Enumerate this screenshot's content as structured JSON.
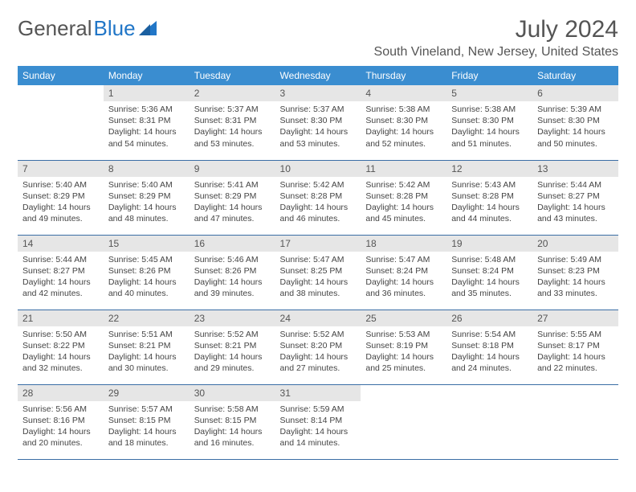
{
  "logo": {
    "word1": "General",
    "word2": "Blue"
  },
  "header": {
    "title": "July 2024",
    "location": "South Vineland, New Jersey, United States"
  },
  "colors": {
    "header_bg": "#3a8dd0",
    "header_text": "#ffffff",
    "daynum_bg": "#e6e6e6",
    "border": "#3a6ea5",
    "logo_blue": "#2176c7"
  },
  "weekdays": [
    "Sunday",
    "Monday",
    "Tuesday",
    "Wednesday",
    "Thursday",
    "Friday",
    "Saturday"
  ],
  "grid": [
    [
      null,
      {
        "n": "1",
        "l1": "Sunrise: 5:36 AM",
        "l2": "Sunset: 8:31 PM",
        "l3": "Daylight: 14 hours",
        "l4": "and 54 minutes."
      },
      {
        "n": "2",
        "l1": "Sunrise: 5:37 AM",
        "l2": "Sunset: 8:31 PM",
        "l3": "Daylight: 14 hours",
        "l4": "and 53 minutes."
      },
      {
        "n": "3",
        "l1": "Sunrise: 5:37 AM",
        "l2": "Sunset: 8:30 PM",
        "l3": "Daylight: 14 hours",
        "l4": "and 53 minutes."
      },
      {
        "n": "4",
        "l1": "Sunrise: 5:38 AM",
        "l2": "Sunset: 8:30 PM",
        "l3": "Daylight: 14 hours",
        "l4": "and 52 minutes."
      },
      {
        "n": "5",
        "l1": "Sunrise: 5:38 AM",
        "l2": "Sunset: 8:30 PM",
        "l3": "Daylight: 14 hours",
        "l4": "and 51 minutes."
      },
      {
        "n": "6",
        "l1": "Sunrise: 5:39 AM",
        "l2": "Sunset: 8:30 PM",
        "l3": "Daylight: 14 hours",
        "l4": "and 50 minutes."
      }
    ],
    [
      {
        "n": "7",
        "l1": "Sunrise: 5:40 AM",
        "l2": "Sunset: 8:29 PM",
        "l3": "Daylight: 14 hours",
        "l4": "and 49 minutes."
      },
      {
        "n": "8",
        "l1": "Sunrise: 5:40 AM",
        "l2": "Sunset: 8:29 PM",
        "l3": "Daylight: 14 hours",
        "l4": "and 48 minutes."
      },
      {
        "n": "9",
        "l1": "Sunrise: 5:41 AM",
        "l2": "Sunset: 8:29 PM",
        "l3": "Daylight: 14 hours",
        "l4": "and 47 minutes."
      },
      {
        "n": "10",
        "l1": "Sunrise: 5:42 AM",
        "l2": "Sunset: 8:28 PM",
        "l3": "Daylight: 14 hours",
        "l4": "and 46 minutes."
      },
      {
        "n": "11",
        "l1": "Sunrise: 5:42 AM",
        "l2": "Sunset: 8:28 PM",
        "l3": "Daylight: 14 hours",
        "l4": "and 45 minutes."
      },
      {
        "n": "12",
        "l1": "Sunrise: 5:43 AM",
        "l2": "Sunset: 8:28 PM",
        "l3": "Daylight: 14 hours",
        "l4": "and 44 minutes."
      },
      {
        "n": "13",
        "l1": "Sunrise: 5:44 AM",
        "l2": "Sunset: 8:27 PM",
        "l3": "Daylight: 14 hours",
        "l4": "and 43 minutes."
      }
    ],
    [
      {
        "n": "14",
        "l1": "Sunrise: 5:44 AM",
        "l2": "Sunset: 8:27 PM",
        "l3": "Daylight: 14 hours",
        "l4": "and 42 minutes."
      },
      {
        "n": "15",
        "l1": "Sunrise: 5:45 AM",
        "l2": "Sunset: 8:26 PM",
        "l3": "Daylight: 14 hours",
        "l4": "and 40 minutes."
      },
      {
        "n": "16",
        "l1": "Sunrise: 5:46 AM",
        "l2": "Sunset: 8:26 PM",
        "l3": "Daylight: 14 hours",
        "l4": "and 39 minutes."
      },
      {
        "n": "17",
        "l1": "Sunrise: 5:47 AM",
        "l2": "Sunset: 8:25 PM",
        "l3": "Daylight: 14 hours",
        "l4": "and 38 minutes."
      },
      {
        "n": "18",
        "l1": "Sunrise: 5:47 AM",
        "l2": "Sunset: 8:24 PM",
        "l3": "Daylight: 14 hours",
        "l4": "and 36 minutes."
      },
      {
        "n": "19",
        "l1": "Sunrise: 5:48 AM",
        "l2": "Sunset: 8:24 PM",
        "l3": "Daylight: 14 hours",
        "l4": "and 35 minutes."
      },
      {
        "n": "20",
        "l1": "Sunrise: 5:49 AM",
        "l2": "Sunset: 8:23 PM",
        "l3": "Daylight: 14 hours",
        "l4": "and 33 minutes."
      }
    ],
    [
      {
        "n": "21",
        "l1": "Sunrise: 5:50 AM",
        "l2": "Sunset: 8:22 PM",
        "l3": "Daylight: 14 hours",
        "l4": "and 32 minutes."
      },
      {
        "n": "22",
        "l1": "Sunrise: 5:51 AM",
        "l2": "Sunset: 8:21 PM",
        "l3": "Daylight: 14 hours",
        "l4": "and 30 minutes."
      },
      {
        "n": "23",
        "l1": "Sunrise: 5:52 AM",
        "l2": "Sunset: 8:21 PM",
        "l3": "Daylight: 14 hours",
        "l4": "and 29 minutes."
      },
      {
        "n": "24",
        "l1": "Sunrise: 5:52 AM",
        "l2": "Sunset: 8:20 PM",
        "l3": "Daylight: 14 hours",
        "l4": "and 27 minutes."
      },
      {
        "n": "25",
        "l1": "Sunrise: 5:53 AM",
        "l2": "Sunset: 8:19 PM",
        "l3": "Daylight: 14 hours",
        "l4": "and 25 minutes."
      },
      {
        "n": "26",
        "l1": "Sunrise: 5:54 AM",
        "l2": "Sunset: 8:18 PM",
        "l3": "Daylight: 14 hours",
        "l4": "and 24 minutes."
      },
      {
        "n": "27",
        "l1": "Sunrise: 5:55 AM",
        "l2": "Sunset: 8:17 PM",
        "l3": "Daylight: 14 hours",
        "l4": "and 22 minutes."
      }
    ],
    [
      {
        "n": "28",
        "l1": "Sunrise: 5:56 AM",
        "l2": "Sunset: 8:16 PM",
        "l3": "Daylight: 14 hours",
        "l4": "and 20 minutes."
      },
      {
        "n": "29",
        "l1": "Sunrise: 5:57 AM",
        "l2": "Sunset: 8:15 PM",
        "l3": "Daylight: 14 hours",
        "l4": "and 18 minutes."
      },
      {
        "n": "30",
        "l1": "Sunrise: 5:58 AM",
        "l2": "Sunset: 8:15 PM",
        "l3": "Daylight: 14 hours",
        "l4": "and 16 minutes."
      },
      {
        "n": "31",
        "l1": "Sunrise: 5:59 AM",
        "l2": "Sunset: 8:14 PM",
        "l3": "Daylight: 14 hours",
        "l4": "and 14 minutes."
      },
      null,
      null,
      null
    ]
  ]
}
